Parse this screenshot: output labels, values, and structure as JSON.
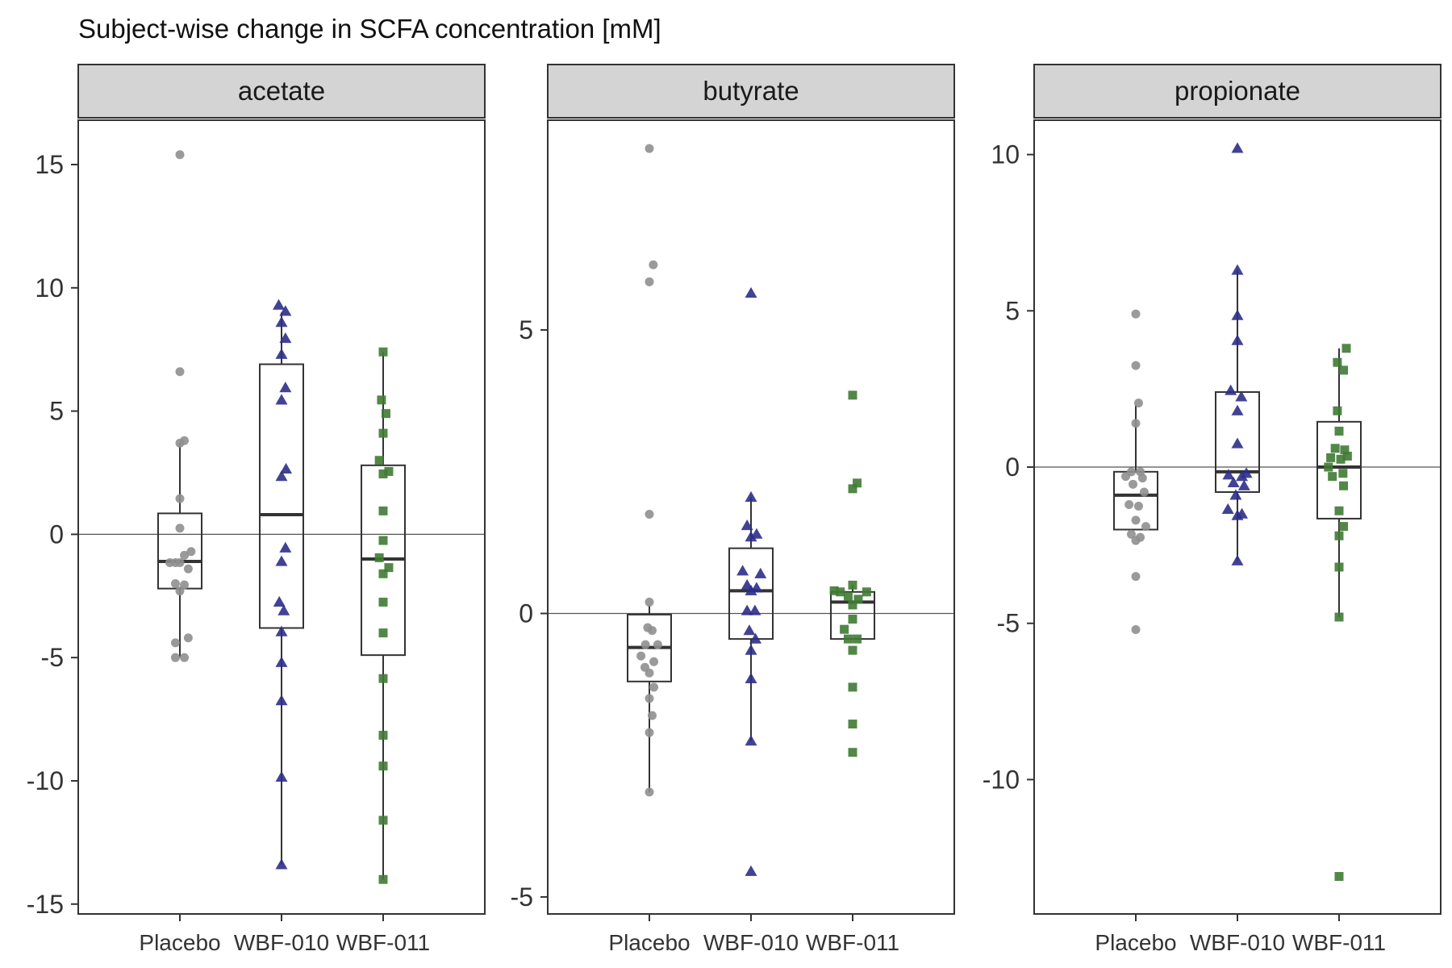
{
  "chart_data": {
    "type": "box",
    "title": "Subject-wise change in SCFA concentration [mM]",
    "categories": [
      "Placebo",
      "WBF-010",
      "WBF-011"
    ],
    "group_colors": {
      "Placebo": "#8f8f8f",
      "WBF-010": "#2e2e8a",
      "WBF-011": "#3f7a34"
    },
    "group_shapes": {
      "Placebo": "circle",
      "WBF-010": "triangle",
      "WBF-011": "square"
    },
    "reference_line_y": 0,
    "panels": [
      {
        "name": "acetate",
        "ylim": [
          -15.4,
          16.8
        ],
        "yticks": [
          15,
          10,
          5,
          0,
          -5,
          -10,
          -15
        ],
        "ytick_labels": [
          "15",
          "10",
          "5",
          "0",
          "-5",
          "-10",
          "-15"
        ],
        "groups": [
          {
            "name": "Placebo",
            "box": {
              "q1": -2.2,
              "median": -1.1,
              "q3": 0.85,
              "whisker_low": -5.0,
              "whisker_high": 3.7
            },
            "points": [
              {
                "x": 0.0,
                "y": 15.4
              },
              {
                "x": 0.0,
                "y": 6.6
              },
              {
                "x": 0.08,
                "y": 3.8
              },
              {
                "x": 0.0,
                "y": 3.7
              },
              {
                "x": 0.0,
                "y": 1.45
              },
              {
                "x": 0.0,
                "y": 0.25
              },
              {
                "x": 0.2,
                "y": -0.7
              },
              {
                "x": 0.08,
                "y": -0.85
              },
              {
                "x": -0.18,
                "y": -1.15
              },
              {
                "x": -0.08,
                "y": -1.15
              },
              {
                "x": 0.0,
                "y": -1.15
              },
              {
                "x": 0.15,
                "y": -1.4
              },
              {
                "x": -0.08,
                "y": -2.0
              },
              {
                "x": 0.08,
                "y": -2.05
              },
              {
                "x": 0.0,
                "y": -2.3
              },
              {
                "x": 0.15,
                "y": -4.2
              },
              {
                "x": -0.08,
                "y": -4.4
              },
              {
                "x": -0.08,
                "y": -5.0
              },
              {
                "x": 0.08,
                "y": -5.0
              }
            ]
          },
          {
            "name": "WBF-010",
            "box": {
              "q1": -3.8,
              "median": 0.8,
              "q3": 6.9,
              "whisker_low": -13.4,
              "whisker_high": 9.0
            },
            "points": [
              {
                "x": -0.05,
                "y": 9.3
              },
              {
                "x": 0.07,
                "y": 9.05
              },
              {
                "x": 0.0,
                "y": 8.6
              },
              {
                "x": 0.07,
                "y": 7.95
              },
              {
                "x": 0.0,
                "y": 7.3
              },
              {
                "x": 0.07,
                "y": 5.95
              },
              {
                "x": 0.0,
                "y": 5.45
              },
              {
                "x": 0.08,
                "y": 2.65
              },
              {
                "x": 0.0,
                "y": 2.35
              },
              {
                "x": 0.07,
                "y": -0.55
              },
              {
                "x": 0.0,
                "y": -1.1
              },
              {
                "x": -0.04,
                "y": -2.75
              },
              {
                "x": 0.04,
                "y": -3.1
              },
              {
                "x": 0.0,
                "y": -3.95
              },
              {
                "x": 0.0,
                "y": -5.2
              },
              {
                "x": 0.0,
                "y": -6.75
              },
              {
                "x": 0.0,
                "y": -9.85
              },
              {
                "x": 0.0,
                "y": -13.4
              }
            ]
          },
          {
            "name": "WBF-011",
            "box": {
              "q1": -4.9,
              "median": -1.0,
              "q3": 2.8,
              "whisker_low": -14.0,
              "whisker_high": 7.4
            },
            "points": [
              {
                "x": 0.0,
                "y": 7.4
              },
              {
                "x": -0.03,
                "y": 5.45
              },
              {
                "x": 0.05,
                "y": 4.9
              },
              {
                "x": 0.0,
                "y": 4.1
              },
              {
                "x": -0.07,
                "y": 3.0
              },
              {
                "x": 0.1,
                "y": 2.55
              },
              {
                "x": 0.0,
                "y": 2.45
              },
              {
                "x": 0.0,
                "y": 0.95
              },
              {
                "x": 0.0,
                "y": -0.25
              },
              {
                "x": -0.07,
                "y": -0.95
              },
              {
                "x": 0.1,
                "y": -1.35
              },
              {
                "x": 0.0,
                "y": -1.6
              },
              {
                "x": 0.0,
                "y": -2.75
              },
              {
                "x": 0.0,
                "y": -4.0
              },
              {
                "x": 0.0,
                "y": -5.85
              },
              {
                "x": 0.0,
                "y": -8.15
              },
              {
                "x": 0.0,
                "y": -9.4
              },
              {
                "x": 0.0,
                "y": -11.6
              },
              {
                "x": 0.0,
                "y": -14.0
              }
            ]
          }
        ]
      },
      {
        "name": "butyrate",
        "ylim": [
          -5.3,
          8.7
        ],
        "yticks": [
          5,
          0,
          -5
        ],
        "ytick_labels": [
          "5",
          "0",
          "-5"
        ],
        "groups": [
          {
            "name": "Placebo",
            "box": {
              "q1": -1.2,
              "median": -0.6,
              "q3": -0.02,
              "whisker_low": -3.15,
              "whisker_high": 0.15
            },
            "points": [
              {
                "x": 0.0,
                "y": 8.2
              },
              {
                "x": 0.07,
                "y": 6.15
              },
              {
                "x": 0.0,
                "y": 5.85
              },
              {
                "x": 0.0,
                "y": 1.75
              },
              {
                "x": 0.0,
                "y": 0.2
              },
              {
                "x": -0.03,
                "y": -0.25
              },
              {
                "x": 0.05,
                "y": -0.3
              },
              {
                "x": -0.07,
                "y": -0.55
              },
              {
                "x": 0.15,
                "y": -0.55
              },
              {
                "x": -0.15,
                "y": -0.75
              },
              {
                "x": 0.08,
                "y": -0.85
              },
              {
                "x": -0.08,
                "y": -0.95
              },
              {
                "x": 0.0,
                "y": -1.05
              },
              {
                "x": 0.08,
                "y": -1.3
              },
              {
                "x": 0.0,
                "y": -1.5
              },
              {
                "x": 0.05,
                "y": -1.8
              },
              {
                "x": 0.0,
                "y": -2.1
              },
              {
                "x": 0.0,
                "y": -3.15
              }
            ]
          },
          {
            "name": "WBF-010",
            "box": {
              "q1": -0.45,
              "median": 0.4,
              "q3": 1.15,
              "whisker_low": -2.25,
              "whisker_high": 2.05
            },
            "points": [
              {
                "x": 0.0,
                "y": 5.65
              },
              {
                "x": 0.0,
                "y": 2.05
              },
              {
                "x": -0.07,
                "y": 1.55
              },
              {
                "x": 0.1,
                "y": 1.4
              },
              {
                "x": 0.0,
                "y": 1.35
              },
              {
                "x": -0.15,
                "y": 0.75
              },
              {
                "x": 0.17,
                "y": 0.7
              },
              {
                "x": -0.07,
                "y": 0.5
              },
              {
                "x": 0.1,
                "y": 0.45
              },
              {
                "x": 0.0,
                "y": 0.4
              },
              {
                "x": -0.07,
                "y": 0.05
              },
              {
                "x": 0.07,
                "y": 0.05
              },
              {
                "x": -0.03,
                "y": -0.3
              },
              {
                "x": 0.08,
                "y": -0.45
              },
              {
                "x": 0.0,
                "y": -0.65
              },
              {
                "x": 0.0,
                "y": -1.15
              },
              {
                "x": 0.0,
                "y": -2.25
              },
              {
                "x": 0.0,
                "y": -4.55
              }
            ]
          },
          {
            "name": "WBF-011",
            "box": {
              "q1": -0.45,
              "median": 0.2,
              "q3": 0.38,
              "whisker_low": -0.45,
              "whisker_high": 0.5
            },
            "points": [
              {
                "x": 0.0,
                "y": 3.85
              },
              {
                "x": 0.08,
                "y": 2.3
              },
              {
                "x": 0.0,
                "y": 2.2
              },
              {
                "x": -0.33,
                "y": 0.4
              },
              {
                "x": -0.22,
                "y": 0.38
              },
              {
                "x": 0.25,
                "y": 0.38
              },
              {
                "x": 0.0,
                "y": 0.5
              },
              {
                "x": -0.08,
                "y": 0.3
              },
              {
                "x": 0.1,
                "y": 0.25
              },
              {
                "x": 0.0,
                "y": 0.15
              },
              {
                "x": -0.15,
                "y": -0.28
              },
              {
                "x": -0.08,
                "y": -0.45
              },
              {
                "x": 0.08,
                "y": -0.45
              },
              {
                "x": 0.0,
                "y": -0.1
              },
              {
                "x": 0.0,
                "y": -0.65
              },
              {
                "x": 0.0,
                "y": -1.3
              },
              {
                "x": 0.0,
                "y": -1.95
              },
              {
                "x": 0.0,
                "y": -2.45
              }
            ]
          }
        ]
      },
      {
        "name": "propionate",
        "ylim": [
          -14.3,
          11.1
        ],
        "yticks": [
          10,
          5,
          0,
          -5,
          -10
        ],
        "ytick_labels": [
          "10",
          "5",
          "0",
          "-5",
          "-10"
        ],
        "groups": [
          {
            "name": "Placebo",
            "box": {
              "q1": -2.0,
              "median": -0.9,
              "q3": -0.15,
              "whisker_low": -2.0,
              "whisker_high": 2.0
            },
            "points": [
              {
                "x": 0.0,
                "y": 4.9
              },
              {
                "x": 0.0,
                "y": 3.25
              },
              {
                "x": 0.05,
                "y": 2.05
              },
              {
                "x": 0.0,
                "y": 1.4
              },
              {
                "x": -0.08,
                "y": -0.15
              },
              {
                "x": 0.08,
                "y": -0.15
              },
              {
                "x": -0.18,
                "y": -0.3
              },
              {
                "x": 0.12,
                "y": -0.35
              },
              {
                "x": -0.05,
                "y": -0.55
              },
              {
                "x": 0.15,
                "y": -0.8
              },
              {
                "x": -0.12,
                "y": -1.2
              },
              {
                "x": 0.05,
                "y": -1.25
              },
              {
                "x": 0.0,
                "y": -1.7
              },
              {
                "x": 0.18,
                "y": -1.9
              },
              {
                "x": -0.08,
                "y": -2.15
              },
              {
                "x": 0.08,
                "y": -2.25
              },
              {
                "x": 0.0,
                "y": -2.35
              },
              {
                "x": 0.0,
                "y": -3.5
              },
              {
                "x": 0.0,
                "y": -5.2
              }
            ]
          },
          {
            "name": "WBF-010",
            "box": {
              "q1": -0.8,
              "median": -0.15,
              "q3": 2.4,
              "whisker_low": -3.0,
              "whisker_high": 6.3
            },
            "points": [
              {
                "x": 0.0,
                "y": 10.2
              },
              {
                "x": 0.0,
                "y": 6.3
              },
              {
                "x": 0.0,
                "y": 4.85
              },
              {
                "x": 0.0,
                "y": 4.05
              },
              {
                "x": -0.12,
                "y": 2.45
              },
              {
                "x": 0.07,
                "y": 2.25
              },
              {
                "x": 0.0,
                "y": 1.8
              },
              {
                "x": 0.0,
                "y": 0.75
              },
              {
                "x": -0.16,
                "y": -0.25
              },
              {
                "x": 0.08,
                "y": -0.3
              },
              {
                "x": 0.16,
                "y": -0.2
              },
              {
                "x": -0.07,
                "y": -0.5
              },
              {
                "x": 0.12,
                "y": -0.6
              },
              {
                "x": -0.03,
                "y": -0.9
              },
              {
                "x": -0.17,
                "y": -1.35
              },
              {
                "x": 0.0,
                "y": -1.55
              },
              {
                "x": 0.08,
                "y": -1.5
              },
              {
                "x": 0.0,
                "y": -3.0
              }
            ]
          },
          {
            "name": "WBF-011",
            "box": {
              "q1": -1.65,
              "median": 0.0,
              "q3": 1.45,
              "whisker_low": -4.8,
              "whisker_high": 3.8
            },
            "points": [
              {
                "x": 0.13,
                "y": 3.8
              },
              {
                "x": -0.03,
                "y": 3.35
              },
              {
                "x": 0.08,
                "y": 3.1
              },
              {
                "x": -0.03,
                "y": 1.8
              },
              {
                "x": 0.0,
                "y": 1.15
              },
              {
                "x": -0.07,
                "y": 0.6
              },
              {
                "x": 0.1,
                "y": 0.55
              },
              {
                "x": -0.15,
                "y": 0.3
              },
              {
                "x": 0.03,
                "y": 0.25
              },
              {
                "x": 0.15,
                "y": 0.35
              },
              {
                "x": -0.19,
                "y": 0.0
              },
              {
                "x": 0.07,
                "y": -0.2
              },
              {
                "x": -0.12,
                "y": -0.3
              },
              {
                "x": 0.08,
                "y": -0.6
              },
              {
                "x": 0.0,
                "y": -1.4
              },
              {
                "x": 0.08,
                "y": -1.9
              },
              {
                "x": 0.0,
                "y": -2.2
              },
              {
                "x": 0.0,
                "y": -3.2
              },
              {
                "x": 0.0,
                "y": -4.8
              },
              {
                "x": 0.0,
                "y": -13.1
              }
            ]
          }
        ]
      }
    ]
  }
}
